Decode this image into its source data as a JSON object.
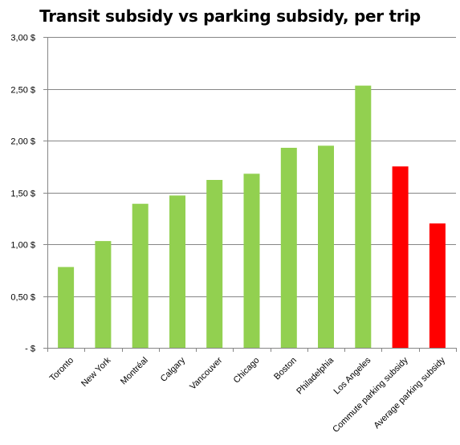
{
  "chart_data": {
    "type": "bar",
    "title": "Transit subsidy vs parking subsidy, per trip",
    "xlabel": "",
    "ylabel": "",
    "categories": [
      "Toronto",
      "New York",
      "Montréal",
      "Calgary",
      "Vancouver",
      "Chicago",
      "Boston",
      "Philadelphia",
      "Los Angeles",
      "Commute parking subsidy",
      "Average parking subsidy"
    ],
    "values": [
      0.78,
      1.03,
      1.39,
      1.47,
      1.62,
      1.68,
      1.93,
      1.95,
      2.53,
      1.75,
      1.2
    ],
    "bar_colors": [
      "#92d050",
      "#92d050",
      "#92d050",
      "#92d050",
      "#92d050",
      "#92d050",
      "#92d050",
      "#92d050",
      "#92d050",
      "#ff0000",
      "#ff0000"
    ],
    "ylim": [
      0,
      3.0
    ],
    "yticks": [
      0,
      0.5,
      1.0,
      1.5,
      2.0,
      2.5,
      3.0
    ],
    "ytick_labels": [
      "-   $",
      "0,50 $",
      "1,00 $",
      "1,50 $",
      "2,00 $",
      "2,50 $",
      "3,00 $"
    ],
    "grid": true,
    "legend": "none"
  }
}
